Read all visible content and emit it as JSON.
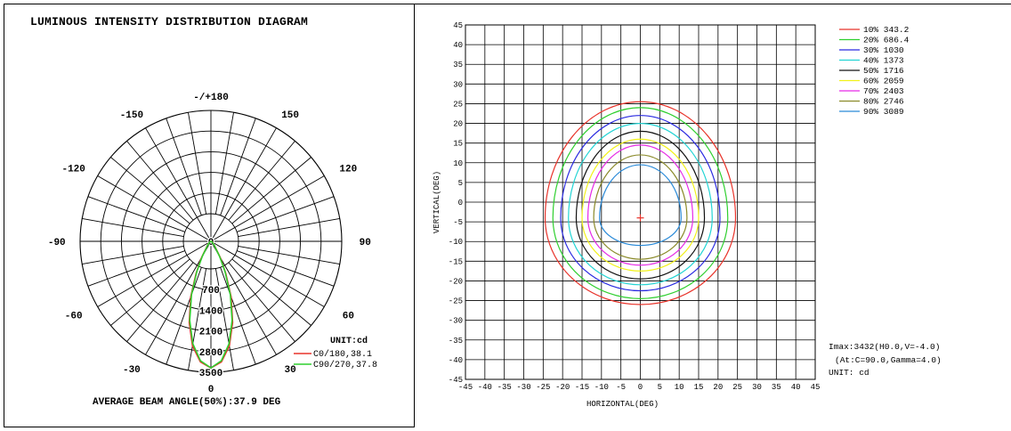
{
  "chart_data": [
    {
      "type": "polar",
      "title": "LUMINOUS INTENSITY DISTRIBUTION DIAGRAM",
      "angle_labels": [
        {
          "angle": 180,
          "text": "-/+180"
        },
        {
          "angle": -150,
          "text": "-150"
        },
        {
          "angle": 150,
          "text": "150"
        },
        {
          "angle": -120,
          "text": "-120"
        },
        {
          "angle": 120,
          "text": "120"
        },
        {
          "angle": -90,
          "text": "-90"
        },
        {
          "angle": 90,
          "text": "90"
        },
        {
          "angle": -60,
          "text": "-60"
        },
        {
          "angle": 60,
          "text": "60"
        },
        {
          "angle": -30,
          "text": "-30"
        },
        {
          "angle": 30,
          "text": "30"
        },
        {
          "angle": 0,
          "text": "0"
        }
      ],
      "radial_ticks": [
        0,
        700,
        1400,
        2100,
        2800,
        3500
      ],
      "radial_max": 3500,
      "unit_label": "UNIT:cd",
      "series": [
        {
          "name": "C0/180,38.1",
          "color": "#e8332a",
          "gamma": [
            0,
            5,
            10,
            15,
            20,
            25,
            30,
            40,
            50,
            60,
            70,
            80,
            90
          ],
          "intensity": [
            3432,
            3280,
            2880,
            2280,
            1600,
            950,
            500,
            150,
            60,
            30,
            15,
            5,
            0
          ]
        },
        {
          "name": "C90/270,37.8",
          "color": "#2fcf2f",
          "gamma": [
            0,
            5,
            10,
            15,
            20,
            25,
            30,
            40,
            50,
            60,
            70,
            80,
            90
          ],
          "intensity": [
            3432,
            3250,
            2820,
            2220,
            1540,
            900,
            470,
            140,
            55,
            28,
            14,
            5,
            0
          ]
        }
      ],
      "footer": "AVERAGE BEAM ANGLE(50%):37.9 DEG"
    },
    {
      "type": "contour",
      "xlabel": "HORIZONTAL(DEG)",
      "ylabel": "VERTICAL(DEG)",
      "xlim": [
        -45,
        45
      ],
      "ylim": [
        -45,
        45
      ],
      "x_ticks": [
        -45,
        -40,
        -35,
        -30,
        -25,
        -20,
        -15,
        -10,
        -5,
        0,
        5,
        10,
        15,
        20,
        25,
        30,
        35,
        40,
        45
      ],
      "y_ticks": [
        45,
        40,
        35,
        30,
        25,
        20,
        15,
        10,
        5,
        0,
        -5,
        -10,
        -15,
        -20,
        -25,
        -30,
        -35,
        -40,
        -45
      ],
      "grid": true,
      "center": [
        0,
        -4
      ],
      "series": [
        {
          "name": "10% 343.2",
          "color": "#e8332a",
          "rx": 24.5,
          "ry_up": 29.5,
          "ry_down": 22.0
        },
        {
          "name": "20% 686.4",
          "color": "#2fcf2f",
          "rx": 22.5,
          "ry_up": 28.0,
          "ry_down": 20.5
        },
        {
          "name": "30% 1030",
          "color": "#2a2ae0",
          "rx": 20.5,
          "ry_up": 26.0,
          "ry_down": 18.5
        },
        {
          "name": "40% 1373",
          "color": "#22d4d4",
          "rx": 18.5,
          "ry_up": 24.0,
          "ry_down": 17.0
        },
        {
          "name": "50% 1716",
          "color": "#111111",
          "rx": 16.5,
          "ry_up": 22.0,
          "ry_down": 15.5
        },
        {
          "name": "60% 2059",
          "color": "#f2f21a",
          "rx": 15.0,
          "ry_up": 20.0,
          "ry_down": 13.5
        },
        {
          "name": "70% 2403",
          "color": "#e62ae6",
          "rx": 13.5,
          "ry_up": 18.5,
          "ry_down": 12.0
        },
        {
          "name": "80% 2746",
          "color": "#8a8a2a",
          "rx": 12.0,
          "ry_up": 16.0,
          "ry_down": 10.5
        },
        {
          "name": "90% 3089",
          "color": "#2a8ad8",
          "rx": 10.5,
          "ry_up": 13.5,
          "ry_down": 7.0
        }
      ],
      "info": [
        "Imax:3432(H0.0,V=-4.0)",
        "(At:C=90.0,Gamma=4.0)",
        "UNIT: cd"
      ]
    }
  ]
}
